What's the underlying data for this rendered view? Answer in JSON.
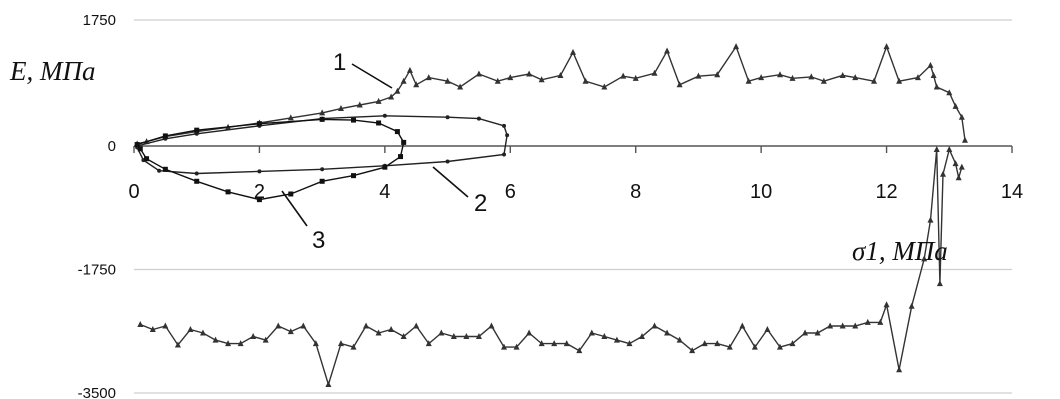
{
  "chart_data": {
    "type": "scatter",
    "title": "",
    "xlabel": "σ1, МПа",
    "ylabel": "Е, МПа",
    "xlim": [
      0,
      14
    ],
    "ylim": [
      -3500,
      1750
    ],
    "x_ticks": [
      0,
      2,
      4,
      6,
      8,
      10,
      12,
      14
    ],
    "x_tick_labels": [
      "0",
      "2",
      "4",
      "6",
      "8",
      "10",
      "12",
      "14"
    ],
    "y_ticks": [
      -3500,
      -1750,
      0,
      1750
    ],
    "y_tick_labels": [
      "-3500",
      "-1750",
      "0",
      "1750"
    ],
    "grid": "horizontal",
    "legend": "none",
    "annotations": [
      "1",
      "2",
      "3"
    ],
    "series": [
      {
        "id": "curve-1-upper",
        "label": "1",
        "color": "#333333",
        "marker": "triangle",
        "points": [
          [
            0.05,
            30
          ],
          [
            0.2,
            60
          ],
          [
            0.5,
            130
          ],
          [
            1.0,
            200
          ],
          [
            1.5,
            260
          ],
          [
            2.0,
            320
          ],
          [
            2.5,
            390
          ],
          [
            3.0,
            460
          ],
          [
            3.3,
            520
          ],
          [
            3.6,
            570
          ],
          [
            3.9,
            620
          ],
          [
            4.1,
            680
          ],
          [
            4.2,
            760
          ],
          [
            4.3,
            900
          ],
          [
            4.4,
            1050
          ],
          [
            4.5,
            850
          ],
          [
            4.7,
            950
          ],
          [
            5.0,
            900
          ],
          [
            5.2,
            820
          ],
          [
            5.5,
            1000
          ],
          [
            5.8,
            900
          ],
          [
            6.0,
            950
          ],
          [
            6.3,
            1000
          ],
          [
            6.5,
            920
          ],
          [
            6.8,
            980
          ],
          [
            7.0,
            1300
          ],
          [
            7.2,
            900
          ],
          [
            7.5,
            820
          ],
          [
            7.8,
            970
          ],
          [
            8.0,
            940
          ],
          [
            8.3,
            1010
          ],
          [
            8.5,
            1320
          ],
          [
            8.7,
            850
          ],
          [
            9.0,
            970
          ],
          [
            9.3,
            990
          ],
          [
            9.6,
            1380
          ],
          [
            9.8,
            900
          ],
          [
            10.0,
            950
          ],
          [
            10.3,
            990
          ],
          [
            10.5,
            940
          ],
          [
            10.8,
            960
          ],
          [
            11.0,
            900
          ],
          [
            11.3,
            980
          ],
          [
            11.5,
            950
          ],
          [
            11.8,
            900
          ],
          [
            12.0,
            1380
          ],
          [
            12.2,
            900
          ],
          [
            12.5,
            950
          ],
          [
            12.7,
            1120
          ],
          [
            12.75,
            980
          ],
          [
            12.8,
            820
          ],
          [
            13.0,
            740
          ],
          [
            13.1,
            550
          ],
          [
            13.2,
            400
          ],
          [
            13.25,
            80
          ]
        ]
      },
      {
        "id": "curve-1-lower",
        "label": "1",
        "color": "#333333",
        "marker": "triangle",
        "points": [
          [
            0.1,
            -2530
          ],
          [
            0.3,
            -2600
          ],
          [
            0.5,
            -2550
          ],
          [
            0.7,
            -2820
          ],
          [
            0.9,
            -2600
          ],
          [
            1.1,
            -2650
          ],
          [
            1.3,
            -2750
          ],
          [
            1.5,
            -2800
          ],
          [
            1.7,
            -2800
          ],
          [
            1.9,
            -2700
          ],
          [
            2.1,
            -2750
          ],
          [
            2.3,
            -2550
          ],
          [
            2.5,
            -2630
          ],
          [
            2.7,
            -2550
          ],
          [
            2.9,
            -2800
          ],
          [
            3.1,
            -3380
          ],
          [
            3.3,
            -2800
          ],
          [
            3.5,
            -2850
          ],
          [
            3.7,
            -2550
          ],
          [
            3.9,
            -2650
          ],
          [
            4.1,
            -2600
          ],
          [
            4.3,
            -2700
          ],
          [
            4.5,
            -2550
          ],
          [
            4.7,
            -2800
          ],
          [
            4.9,
            -2650
          ],
          [
            5.1,
            -2700
          ],
          [
            5.3,
            -2700
          ],
          [
            5.5,
            -2700
          ],
          [
            5.7,
            -2550
          ],
          [
            5.9,
            -2850
          ],
          [
            6.1,
            -2850
          ],
          [
            6.3,
            -2650
          ],
          [
            6.5,
            -2800
          ],
          [
            6.7,
            -2800
          ],
          [
            6.9,
            -2800
          ],
          [
            7.1,
            -2900
          ],
          [
            7.3,
            -2650
          ],
          [
            7.5,
            -2700
          ],
          [
            7.7,
            -2750
          ],
          [
            7.9,
            -2800
          ],
          [
            8.1,
            -2700
          ],
          [
            8.3,
            -2550
          ],
          [
            8.5,
            -2650
          ],
          [
            8.7,
            -2750
          ],
          [
            8.9,
            -2900
          ],
          [
            9.1,
            -2800
          ],
          [
            9.3,
            -2800
          ],
          [
            9.5,
            -2850
          ],
          [
            9.7,
            -2550
          ],
          [
            9.9,
            -2850
          ],
          [
            10.1,
            -2600
          ],
          [
            10.3,
            -2850
          ],
          [
            10.5,
            -2800
          ],
          [
            10.7,
            -2650
          ],
          [
            10.9,
            -2650
          ],
          [
            11.1,
            -2550
          ],
          [
            11.3,
            -2550
          ],
          [
            11.5,
            -2550
          ],
          [
            11.7,
            -2500
          ],
          [
            11.9,
            -2500
          ],
          [
            12.0,
            -2250
          ],
          [
            12.2,
            -3170
          ],
          [
            12.4,
            -2270
          ],
          [
            12.6,
            -1600
          ],
          [
            12.7,
            -1050
          ],
          [
            12.8,
            -50
          ],
          [
            12.85,
            -1950
          ],
          [
            12.9,
            -400
          ],
          [
            13.0,
            -50
          ],
          [
            13.1,
            -250
          ],
          [
            13.15,
            -450
          ],
          [
            13.2,
            -300
          ]
        ]
      },
      {
        "id": "curve-2",
        "label": "2",
        "color": "#222222",
        "marker": "dot",
        "points": [
          [
            0.05,
            0
          ],
          [
            0.5,
            100
          ],
          [
            1.0,
            170
          ],
          [
            2.0,
            280
          ],
          [
            3.0,
            380
          ],
          [
            4.0,
            420
          ],
          [
            5.0,
            400
          ],
          [
            5.5,
            380
          ],
          [
            5.9,
            280
          ],
          [
            5.95,
            150
          ],
          [
            5.9,
            -120
          ],
          [
            5.0,
            -220
          ],
          [
            4.0,
            -280
          ],
          [
            3.0,
            -330
          ],
          [
            2.0,
            -360
          ],
          [
            1.0,
            -390
          ],
          [
            0.4,
            -350
          ],
          [
            0.15,
            -200
          ],
          [
            0.05,
            -20
          ]
        ]
      },
      {
        "id": "curve-3",
        "label": "3",
        "color": "#111111",
        "marker": "square",
        "points": [
          [
            0.05,
            20
          ],
          [
            0.5,
            140
          ],
          [
            1.0,
            220
          ],
          [
            2.0,
            310
          ],
          [
            3.0,
            370
          ],
          [
            3.5,
            360
          ],
          [
            3.9,
            320
          ],
          [
            4.2,
            200
          ],
          [
            4.3,
            50
          ],
          [
            4.25,
            -150
          ],
          [
            4.0,
            -300
          ],
          [
            3.5,
            -420
          ],
          [
            3.0,
            -500
          ],
          [
            2.5,
            -680
          ],
          [
            2.0,
            -760
          ],
          [
            1.5,
            -650
          ],
          [
            1.0,
            -500
          ],
          [
            0.5,
            -330
          ],
          [
            0.2,
            -180
          ],
          [
            0.1,
            -40
          ]
        ]
      }
    ]
  }
}
